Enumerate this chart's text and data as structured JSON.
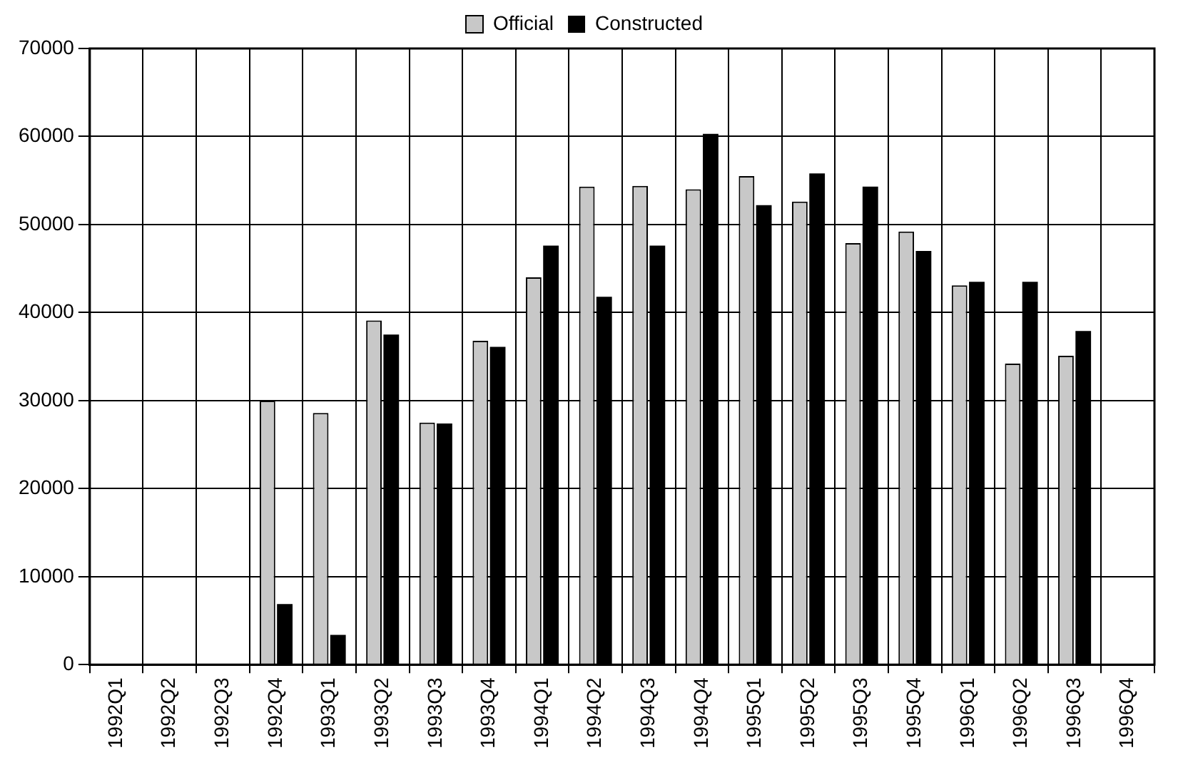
{
  "chart_data": {
    "type": "bar",
    "categories": [
      "1992Q1",
      "1992Q2",
      "1992Q3",
      "1992Q4",
      "1993Q1",
      "1993Q2",
      "1993Q3",
      "1993Q4",
      "1994Q1",
      "1994Q2",
      "1994Q3",
      "1994Q4",
      "1995Q1",
      "1995Q2",
      "1995Q3",
      "1995Q4",
      "1996Q1",
      "1996Q2",
      "1996Q3",
      "1996Q4"
    ],
    "series": [
      {
        "name": "Official",
        "color": "#c8c8c8",
        "values": [
          null,
          null,
          null,
          30000,
          28600,
          39100,
          27500,
          36800,
          44000,
          54300,
          54400,
          54000,
          55500,
          52600,
          47900,
          49200,
          43100,
          34200,
          35100,
          null
        ]
      },
      {
        "name": "Constructed",
        "color": "#000000",
        "values": [
          null,
          null,
          null,
          6900,
          3400,
          37500,
          27400,
          36100,
          47600,
          41800,
          47600,
          60300,
          52200,
          55800,
          54300,
          47000,
          43500,
          43500,
          37900,
          null
        ]
      }
    ],
    "ylim": [
      0,
      70000
    ],
    "yticks": [
      0,
      10000,
      20000,
      30000,
      40000,
      50000,
      60000,
      70000
    ],
    "grid": true,
    "legend": "top"
  }
}
